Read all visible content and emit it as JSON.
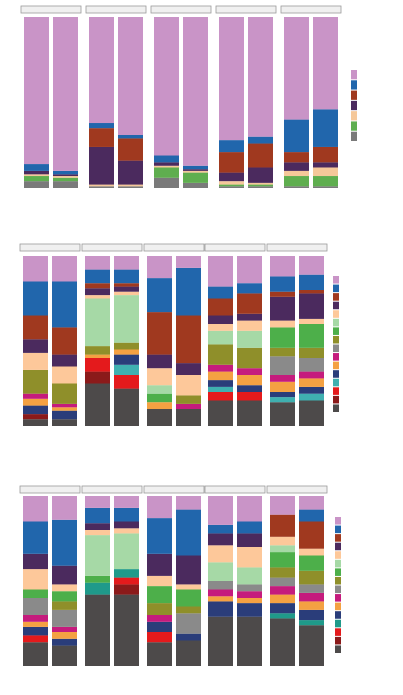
{
  "chart_data": [
    {
      "type": "bar",
      "stacked": true,
      "series": [
        {
          "color": "#7a7a7a",
          "values": [
            4,
            4,
            1,
            1,
            6,
            3,
            1,
            1,
            1,
            1
          ]
        },
        {
          "color": "#5fae4f",
          "values": [
            3,
            2,
            0,
            0,
            6,
            6,
            1,
            1,
            6,
            6
          ]
        },
        {
          "color": "#f5c89a",
          "values": [
            1,
            1,
            1,
            1,
            1,
            1,
            2,
            1,
            3,
            5
          ]
        },
        {
          "color": "#4b2a5e",
          "values": [
            2,
            1,
            22,
            14,
            2,
            1,
            5,
            9,
            5,
            3
          ]
        },
        {
          "color": "#a0391f",
          "values": [
            0,
            0,
            11,
            13,
            0,
            0,
            12,
            14,
            6,
            9
          ]
        },
        {
          "color": "#2166ac",
          "values": [
            4,
            2,
            3,
            2,
            4,
            2,
            7,
            4,
            19,
            22
          ]
        },
        {
          "color": "#c994c7",
          "values": [
            86,
            90,
            62,
            69,
            81,
            87,
            72,
            70,
            60,
            54
          ]
        }
      ]
    },
    {
      "type": "bar",
      "stacked": true,
      "series": [
        {
          "color": "#4d4a4a",
          "values": [
            4,
            4,
            25,
            22,
            10,
            10,
            15,
            15,
            14,
            15
          ]
        },
        {
          "color": "#8b1a1a",
          "values": [
            3,
            0,
            7,
            0,
            0,
            0,
            0,
            0,
            0,
            0
          ]
        },
        {
          "color": "#e41a1c",
          "values": [
            0,
            0,
            8,
            8,
            0,
            0,
            5,
            5,
            0,
            0
          ]
        },
        {
          "color": "#3fb0b0",
          "values": [
            0,
            0,
            0,
            6,
            0,
            0,
            3,
            0,
            3,
            4
          ]
        },
        {
          "color": "#2a3d7a",
          "values": [
            5,
            5,
            0,
            6,
            0,
            0,
            4,
            4,
            3,
            4
          ]
        },
        {
          "color": "#f4a142",
          "values": [
            4,
            2,
            2,
            3,
            4,
            0,
            5,
            6,
            6,
            5
          ]
        },
        {
          "color": "#c51b7d",
          "values": [
            3,
            2,
            0,
            0,
            0,
            3,
            4,
            4,
            4,
            4
          ]
        },
        {
          "color": "#8a8a8a",
          "values": [
            0,
            0,
            0,
            0,
            0,
            0,
            0,
            0,
            11,
            8
          ]
        },
        {
          "color": "#8f8f2a",
          "values": [
            14,
            12,
            5,
            4,
            0,
            5,
            12,
            12,
            5,
            6
          ]
        },
        {
          "color": "#4daf4a",
          "values": [
            0,
            0,
            0,
            0,
            5,
            0,
            0,
            0,
            12,
            14
          ]
        },
        {
          "color": "#a6d9a6",
          "values": [
            0,
            0,
            28,
            28,
            5,
            0,
            8,
            10,
            0,
            0
          ]
        },
        {
          "color": "#fdc89a",
          "values": [
            10,
            10,
            2,
            2,
            10,
            12,
            4,
            6,
            4,
            3
          ]
        },
        {
          "color": "#4b2a5e",
          "values": [
            8,
            7,
            4,
            3,
            8,
            7,
            5,
            4,
            14,
            15
          ]
        },
        {
          "color": "#a0391f",
          "values": [
            14,
            16,
            3,
            2,
            25,
            28,
            10,
            12,
            3,
            2
          ]
        },
        {
          "color": "#2166ac",
          "values": [
            20,
            27,
            8,
            8,
            20,
            28,
            7,
            6,
            9,
            9
          ]
        },
        {
          "color": "#c994c7",
          "values": [
            15,
            15,
            8,
            8,
            13,
            7,
            18,
            16,
            12,
            11
          ]
        }
      ]
    },
    {
      "type": "bar",
      "stacked": true,
      "series": [
        {
          "color": "#4d4a4a",
          "values": [
            14,
            12,
            42,
            42,
            14,
            15,
            29,
            29,
            28,
            24
          ]
        },
        {
          "color": "#8b1a1a",
          "values": [
            0,
            0,
            0,
            6,
            0,
            0,
            0,
            0,
            0,
            0
          ]
        },
        {
          "color": "#e41a1c",
          "values": [
            4,
            0,
            0,
            4,
            6,
            0,
            0,
            0,
            0,
            0
          ]
        },
        {
          "color": "#1f9a8a",
          "values": [
            0,
            0,
            7,
            5,
            0,
            0,
            0,
            0,
            3,
            3
          ]
        },
        {
          "color": "#2a3d7a",
          "values": [
            5,
            4,
            0,
            0,
            6,
            4,
            9,
            8,
            6,
            6
          ]
        },
        {
          "color": "#f4a142",
          "values": [
            3,
            4,
            0,
            0,
            0,
            0,
            3,
            3,
            5,
            5
          ]
        },
        {
          "color": "#c51b7d",
          "values": [
            4,
            3,
            0,
            0,
            4,
            0,
            4,
            4,
            5,
            5
          ]
        },
        {
          "color": "#8a8a8a",
          "values": [
            10,
            10,
            0,
            0,
            0,
            12,
            5,
            4,
            5,
            5
          ]
        },
        {
          "color": "#8f8f2a",
          "values": [
            0,
            5,
            0,
            0,
            7,
            4,
            0,
            0,
            6,
            8
          ]
        },
        {
          "color": "#4daf4a",
          "values": [
            5,
            6,
            4,
            0,
            10,
            10,
            0,
            0,
            9,
            9
          ]
        },
        {
          "color": "#a6d9a6",
          "values": [
            0,
            0,
            24,
            21,
            0,
            0,
            11,
            10,
            4,
            0
          ]
        },
        {
          "color": "#fdc89a",
          "values": [
            12,
            4,
            3,
            3,
            6,
            3,
            10,
            12,
            5,
            4
          ]
        },
        {
          "color": "#4b2a5e",
          "values": [
            9,
            11,
            4,
            4,
            13,
            17,
            7,
            8,
            0,
            0
          ]
        },
        {
          "color": "#a0391f",
          "values": [
            0,
            0,
            0,
            0,
            0,
            0,
            0,
            0,
            13,
            16
          ]
        },
        {
          "color": "#2166ac",
          "values": [
            19,
            27,
            9,
            8,
            21,
            27,
            5,
            7,
            0,
            7
          ]
        },
        {
          "color": "#c994c7",
          "values": [
            15,
            14,
            7,
            7,
            13,
            8,
            17,
            15,
            11,
            8
          ]
        }
      ]
    }
  ]
}
